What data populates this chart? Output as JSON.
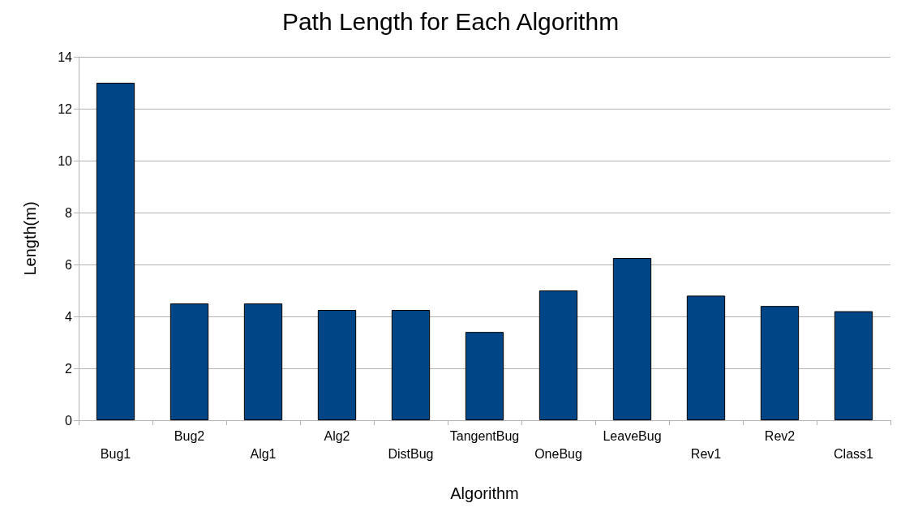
{
  "chart_data": {
    "type": "bar",
    "title": "Path Length for Each Algorithm",
    "xlabel": "Algorithm",
    "ylabel": "Length(m)",
    "categories": [
      "Bug1",
      "Bug2",
      "Alg1",
      "Alg2",
      "DistBug",
      "TangentBug",
      "OneBug",
      "LeaveBug",
      "Rev1",
      "Rev2",
      "Class1"
    ],
    "values": [
      13,
      4.5,
      4.5,
      4.25,
      4.25,
      3.4,
      5,
      6.25,
      4.8,
      4.4,
      4.2
    ],
    "color": "#004586",
    "ylim": [
      0,
      14
    ],
    "yticks": [
      0,
      2,
      4,
      6,
      8,
      10,
      12,
      14
    ],
    "grid": "y"
  }
}
